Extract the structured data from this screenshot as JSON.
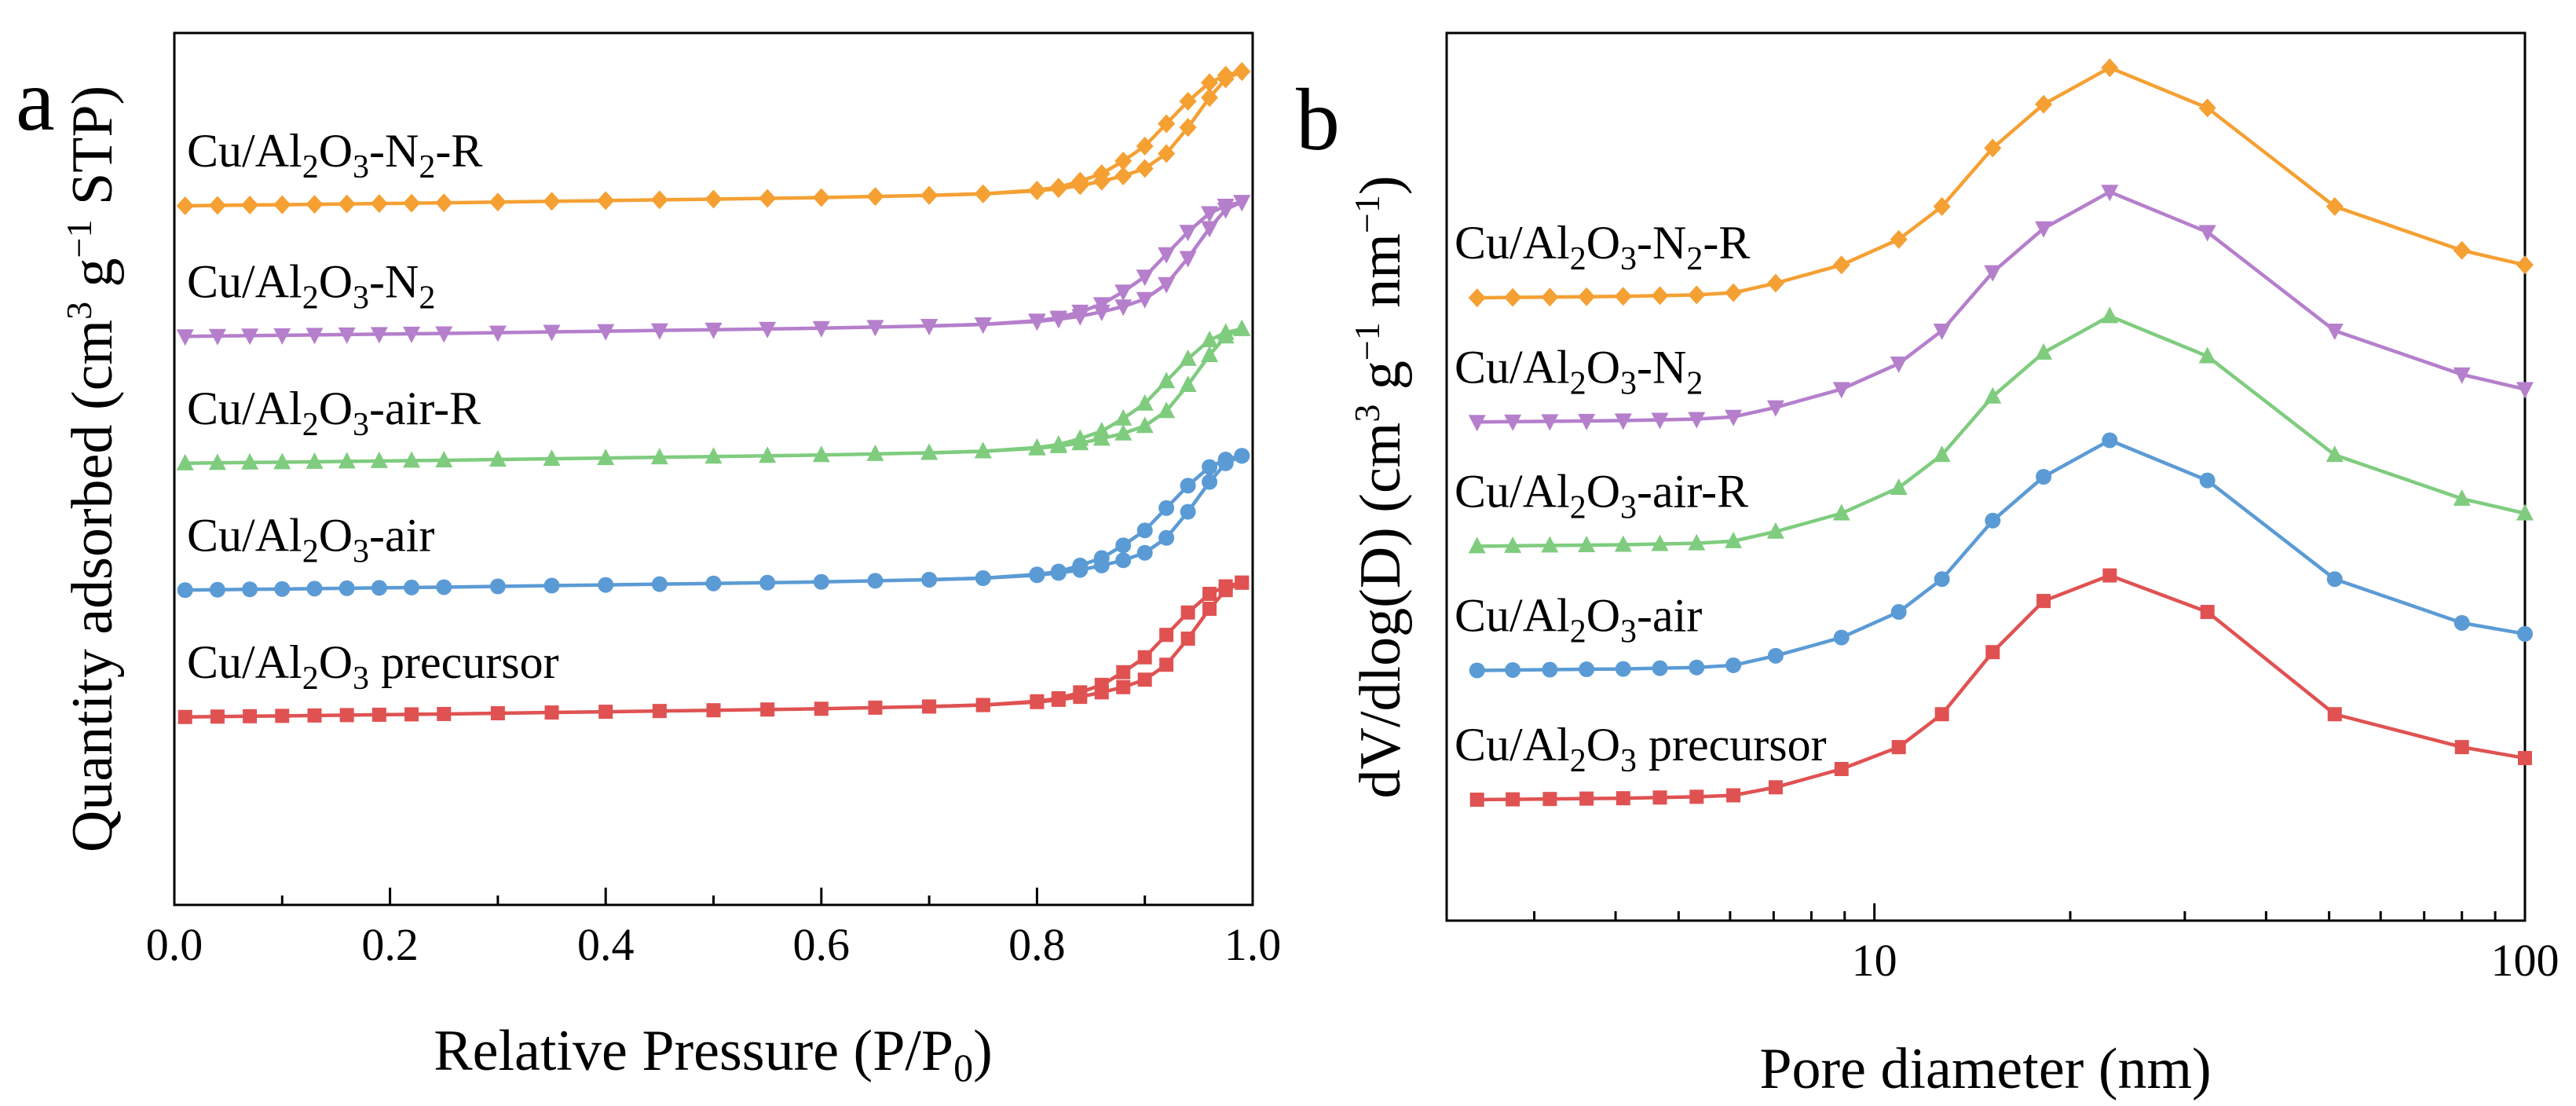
{
  "chart_data": [
    {
      "panel": "a",
      "type": "line",
      "title": "",
      "xlabel_main": "Relative Pressure (P/P",
      "xlabel_sub": "0",
      "xlabel_end": ")",
      "ylabel_main": "Quantity adsorbed (cm",
      "ylabel_sup": "3",
      "ylabel_mid": " g",
      "ylabel_sup2": "−1",
      "ylabel_end": " STP)",
      "xlim": [
        0.0,
        1.0
      ],
      "xticks": [
        {
          "value": 0.0,
          "label": "0.0"
        },
        {
          "value": 0.2,
          "label": "0.2"
        },
        {
          "value": 0.4,
          "label": "0.4"
        },
        {
          "value": 0.6,
          "label": "0.6"
        },
        {
          "value": 0.8,
          "label": "0.8"
        },
        {
          "value": 1.0,
          "label": "1.0"
        }
      ],
      "yticks_visible": false,
      "y_units": "stacked curves, arbitrary units (offset for clarity)",
      "ylim": [
        0,
        100
      ],
      "series": [
        {
          "name": "Cu/Al2O3 precursor",
          "label_parts": {
            "a": "Cu/Al",
            "b": "2",
            "c": "O",
            "d": "3",
            "e": " precursor"
          },
          "color": "#e05252",
          "marker": "square",
          "adsorption": {
            "x": [
              0.01,
              0.04,
              0.07,
              0.1,
              0.13,
              0.16,
              0.19,
              0.22,
              0.25,
              0.3,
              0.35,
              0.4,
              0.45,
              0.5,
              0.55,
              0.6,
              0.65,
              0.7,
              0.75,
              0.8,
              0.82,
              0.84,
              0.86,
              0.88,
              0.9,
              0.92,
              0.94,
              0.96,
              0.975,
              0.99
            ],
            "y": [
              11.5,
              11.55,
              11.6,
              11.65,
              11.7,
              11.75,
              11.8,
              11.85,
              11.9,
              12.0,
              12.1,
              12.2,
              12.3,
              12.4,
              12.5,
              12.6,
              12.75,
              12.9,
              13.1,
              13.5,
              13.8,
              14.2,
              14.8,
              15.5,
              16.5,
              18.5,
              22.0,
              26.0,
              28.5,
              29.5
            ]
          },
          "desorption": {
            "x": [
              0.99,
              0.975,
              0.96,
              0.94,
              0.92,
              0.9,
              0.88,
              0.86,
              0.84,
              0.82,
              0.8,
              0.75,
              0.7
            ],
            "y": [
              29.5,
              29.0,
              28.0,
              25.5,
              22.5,
              19.5,
              17.5,
              15.8,
              14.8,
              14.0,
              13.6,
              13.1,
              12.9
            ]
          }
        },
        {
          "name": "Cu/Al2O3-air",
          "label_parts": {
            "a": "Cu/Al",
            "b": "2",
            "c": "O",
            "d": "3",
            "e": "-air"
          },
          "color": "#5b9bd5",
          "marker": "circle",
          "adsorption": {
            "x": [
              0.01,
              0.04,
              0.07,
              0.1,
              0.13,
              0.16,
              0.19,
              0.22,
              0.25,
              0.3,
              0.35,
              0.4,
              0.45,
              0.5,
              0.55,
              0.6,
              0.65,
              0.7,
              0.75,
              0.8,
              0.82,
              0.84,
              0.86,
              0.88,
              0.9,
              0.92,
              0.94,
              0.96,
              0.975,
              0.99
            ],
            "y": [
              28.5,
              28.55,
              28.6,
              28.65,
              28.7,
              28.75,
              28.8,
              28.85,
              28.9,
              29.0,
              29.1,
              29.2,
              29.3,
              29.4,
              29.5,
              29.6,
              29.75,
              29.9,
              30.1,
              30.5,
              30.8,
              31.2,
              31.8,
              32.5,
              33.5,
              35.5,
              39.0,
              43.0,
              45.5,
              46.5
            ]
          },
          "desorption": {
            "x": [
              0.99,
              0.975,
              0.96,
              0.94,
              0.92,
              0.9,
              0.88,
              0.86,
              0.84,
              0.82,
              0.8,
              0.75,
              0.7
            ],
            "y": [
              46.5,
              46.0,
              45.0,
              42.5,
              39.5,
              36.5,
              34.5,
              32.8,
              31.8,
              31.0,
              30.6,
              30.1,
              29.9
            ]
          }
        },
        {
          "name": "Cu/Al2O3-air-R",
          "label_parts": {
            "a": "Cu/Al",
            "b": "2",
            "c": "O",
            "d": "3",
            "e": "-air-R"
          },
          "color": "#7fcc7f",
          "marker": "triangle-up",
          "adsorption": {
            "x": [
              0.01,
              0.04,
              0.07,
              0.1,
              0.13,
              0.16,
              0.19,
              0.22,
              0.25,
              0.3,
              0.35,
              0.4,
              0.45,
              0.5,
              0.55,
              0.6,
              0.65,
              0.7,
              0.75,
              0.8,
              0.82,
              0.84,
              0.86,
              0.88,
              0.9,
              0.92,
              0.94,
              0.96,
              0.975,
              0.99
            ],
            "y": [
              45.5,
              45.55,
              45.6,
              45.65,
              45.7,
              45.75,
              45.8,
              45.85,
              45.9,
              46.0,
              46.1,
              46.2,
              46.3,
              46.4,
              46.5,
              46.6,
              46.75,
              46.9,
              47.1,
              47.5,
              47.8,
              48.2,
              48.8,
              49.5,
              50.5,
              52.5,
              56.0,
              60.0,
              62.5,
              63.5
            ]
          },
          "desorption": {
            "x": [
              0.99,
              0.975,
              0.96,
              0.94,
              0.92,
              0.9,
              0.88,
              0.86,
              0.84,
              0.82,
              0.8,
              0.75,
              0.7
            ],
            "y": [
              63.5,
              63.0,
              62.0,
              59.5,
              56.5,
              53.5,
              51.5,
              49.8,
              48.8,
              48.0,
              47.6,
              47.1,
              46.9
            ]
          }
        },
        {
          "name": "Cu/Al2O3-N2",
          "label_parts": {
            "a": "Cu/Al",
            "b": "2",
            "c": "O",
            "d": "3",
            "e": "-N",
            "f": "2"
          },
          "color": "#b57fcc",
          "marker": "triangle-down",
          "adsorption": {
            "x": [
              0.01,
              0.04,
              0.07,
              0.1,
              0.13,
              0.16,
              0.19,
              0.22,
              0.25,
              0.3,
              0.35,
              0.4,
              0.45,
              0.5,
              0.55,
              0.6,
              0.65,
              0.7,
              0.75,
              0.8,
              0.82,
              0.84,
              0.86,
              0.88,
              0.9,
              0.92,
              0.94,
              0.96,
              0.975,
              0.99
            ],
            "y": [
              62.5,
              62.55,
              62.6,
              62.65,
              62.7,
              62.75,
              62.8,
              62.85,
              62.9,
              63.0,
              63.1,
              63.2,
              63.3,
              63.4,
              63.5,
              63.6,
              63.75,
              63.9,
              64.1,
              64.5,
              64.8,
              65.2,
              65.8,
              66.5,
              67.5,
              69.5,
              73.0,
              77.0,
              79.5,
              80.5
            ]
          },
          "desorption": {
            "x": [
              0.99,
              0.975,
              0.96,
              0.94,
              0.92,
              0.9,
              0.88,
              0.86,
              0.84,
              0.82,
              0.8,
              0.75,
              0.7
            ],
            "y": [
              80.5,
              80.0,
              79.0,
              76.5,
              73.5,
              70.5,
              68.5,
              66.8,
              65.8,
              65.0,
              64.6,
              64.1,
              63.9
            ]
          }
        },
        {
          "name": "Cu/Al2O3-N2-R",
          "label_parts": {
            "a": "Cu/Al",
            "b": "2",
            "c": "O",
            "d": "3",
            "e": "-N",
            "f": "2",
            "g": "-R"
          },
          "color": "#f5a033",
          "marker": "diamond",
          "adsorption": {
            "x": [
              0.01,
              0.04,
              0.07,
              0.1,
              0.13,
              0.16,
              0.19,
              0.22,
              0.25,
              0.3,
              0.35,
              0.4,
              0.45,
              0.5,
              0.55,
              0.6,
              0.65,
              0.7,
              0.75,
              0.8,
              0.82,
              0.84,
              0.86,
              0.88,
              0.9,
              0.92,
              0.94,
              0.96,
              0.975,
              0.99
            ],
            "y": [
              80.0,
              80.05,
              80.1,
              80.15,
              80.2,
              80.25,
              80.3,
              80.35,
              80.4,
              80.5,
              80.6,
              80.7,
              80.8,
              80.9,
              81.0,
              81.1,
              81.25,
              81.4,
              81.6,
              82.0,
              82.3,
              82.7,
              83.3,
              84.0,
              85.0,
              87.0,
              90.5,
              94.5,
              97.0,
              98.0
            ]
          },
          "desorption": {
            "x": [
              0.99,
              0.975,
              0.96,
              0.94,
              0.92,
              0.9,
              0.88,
              0.86,
              0.84,
              0.82,
              0.8,
              0.75,
              0.7
            ],
            "y": [
              98.0,
              97.5,
              96.5,
              94.0,
              91.0,
              88.0,
              86.0,
              84.3,
              83.3,
              82.5,
              82.1,
              81.6,
              81.4
            ]
          }
        }
      ]
    },
    {
      "panel": "b",
      "type": "line",
      "title": "",
      "xlabel": "Pore diameter (nm)",
      "xscale": "log",
      "ylabel_main": "dV/dlog(D) (cm",
      "ylabel_sup": "3",
      "ylabel_mid": " g",
      "ylabel_sup2": "−1",
      "ylabel_mid2": " nm",
      "ylabel_sup3": "−1",
      "ylabel_end": ")",
      "xlim": [
        2.2,
        100
      ],
      "xticks": [
        {
          "value": 10,
          "label": "10"
        },
        {
          "value": 100,
          "label": "100"
        }
      ],
      "yticks_visible": false,
      "y_units": "stacked curves, arbitrary units (offset for clarity)",
      "ylim": [
        0,
        100
      ],
      "x": [
        2.45,
        2.78,
        3.17,
        3.61,
        4.11,
        4.68,
        5.33,
        6.07,
        7.05,
        8.9,
        10.9,
        12.7,
        15.2,
        18.2,
        23.0,
        32.5,
        51.0,
        80.0,
        100.0
      ],
      "series": [
        {
          "name": "Cu/Al2O3 precursor",
          "label_parts": {
            "a": "Cu/Al",
            "b": "2",
            "c": "O",
            "d": "3",
            "e": " precursor"
          },
          "color": "#e05252",
          "marker": "square",
          "y": [
            5.8,
            5.85,
            5.9,
            5.95,
            6.0,
            6.1,
            6.2,
            6.4,
            7.5,
            10.0,
            13.0,
            17.5,
            26.0,
            33.0,
            36.5,
            31.5,
            17.5,
            13.0,
            11.5
          ]
        },
        {
          "name": "Cu/Al2O3-air",
          "label_parts": {
            "a": "Cu/Al",
            "b": "2",
            "c": "O",
            "d": "3",
            "e": "-air"
          },
          "color": "#5b9bd5",
          "marker": "circle",
          "y": [
            23.5,
            23.55,
            23.6,
            23.65,
            23.7,
            23.8,
            23.9,
            24.2,
            25.5,
            28.0,
            31.5,
            36.0,
            44.0,
            50.0,
            55.0,
            49.5,
            36.0,
            30.0,
            28.5
          ]
        },
        {
          "name": "Cu/Al2O3-air-R",
          "label_parts": {
            "a": "Cu/Al",
            "b": "2",
            "c": "O",
            "d": "3",
            "e": "-air-R"
          },
          "color": "#7fcc7f",
          "marker": "triangle-up",
          "y": [
            40.5,
            40.55,
            40.6,
            40.65,
            40.7,
            40.8,
            40.9,
            41.2,
            42.5,
            45.0,
            48.5,
            53.0,
            61.0,
            67.0,
            72.0,
            66.5,
            53.0,
            47.0,
            45.0
          ]
        },
        {
          "name": "Cu/Al2O3-N2",
          "label_parts": {
            "a": "Cu/Al",
            "b": "2",
            "c": "O",
            "d": "3",
            "e": "-N",
            "f": "2"
          },
          "color": "#b57fcc",
          "marker": "triangle-down",
          "y": [
            57.5,
            57.55,
            57.6,
            57.65,
            57.7,
            57.8,
            57.9,
            58.2,
            59.5,
            62.0,
            65.5,
            70.0,
            78.0,
            84.0,
            89.0,
            83.5,
            70.0,
            64.0,
            62.0
          ]
        },
        {
          "name": "Cu/Al2O3-N2-R",
          "label_parts": {
            "a": "Cu/Al",
            "b": "2",
            "c": "O",
            "d": "3",
            "e": "-N",
            "f": "2",
            "g": "-R"
          },
          "color": "#f5a033",
          "marker": "diamond",
          "y": [
            74.5,
            74.55,
            74.6,
            74.65,
            74.7,
            74.8,
            74.9,
            75.2,
            76.5,
            79.0,
            82.5,
            87.0,
            95.0,
            101.0,
            106.0,
            100.5,
            87.0,
            81.0,
            79.0
          ]
        }
      ]
    }
  ],
  "panel_labels": {
    "a": "a",
    "b": "b"
  }
}
